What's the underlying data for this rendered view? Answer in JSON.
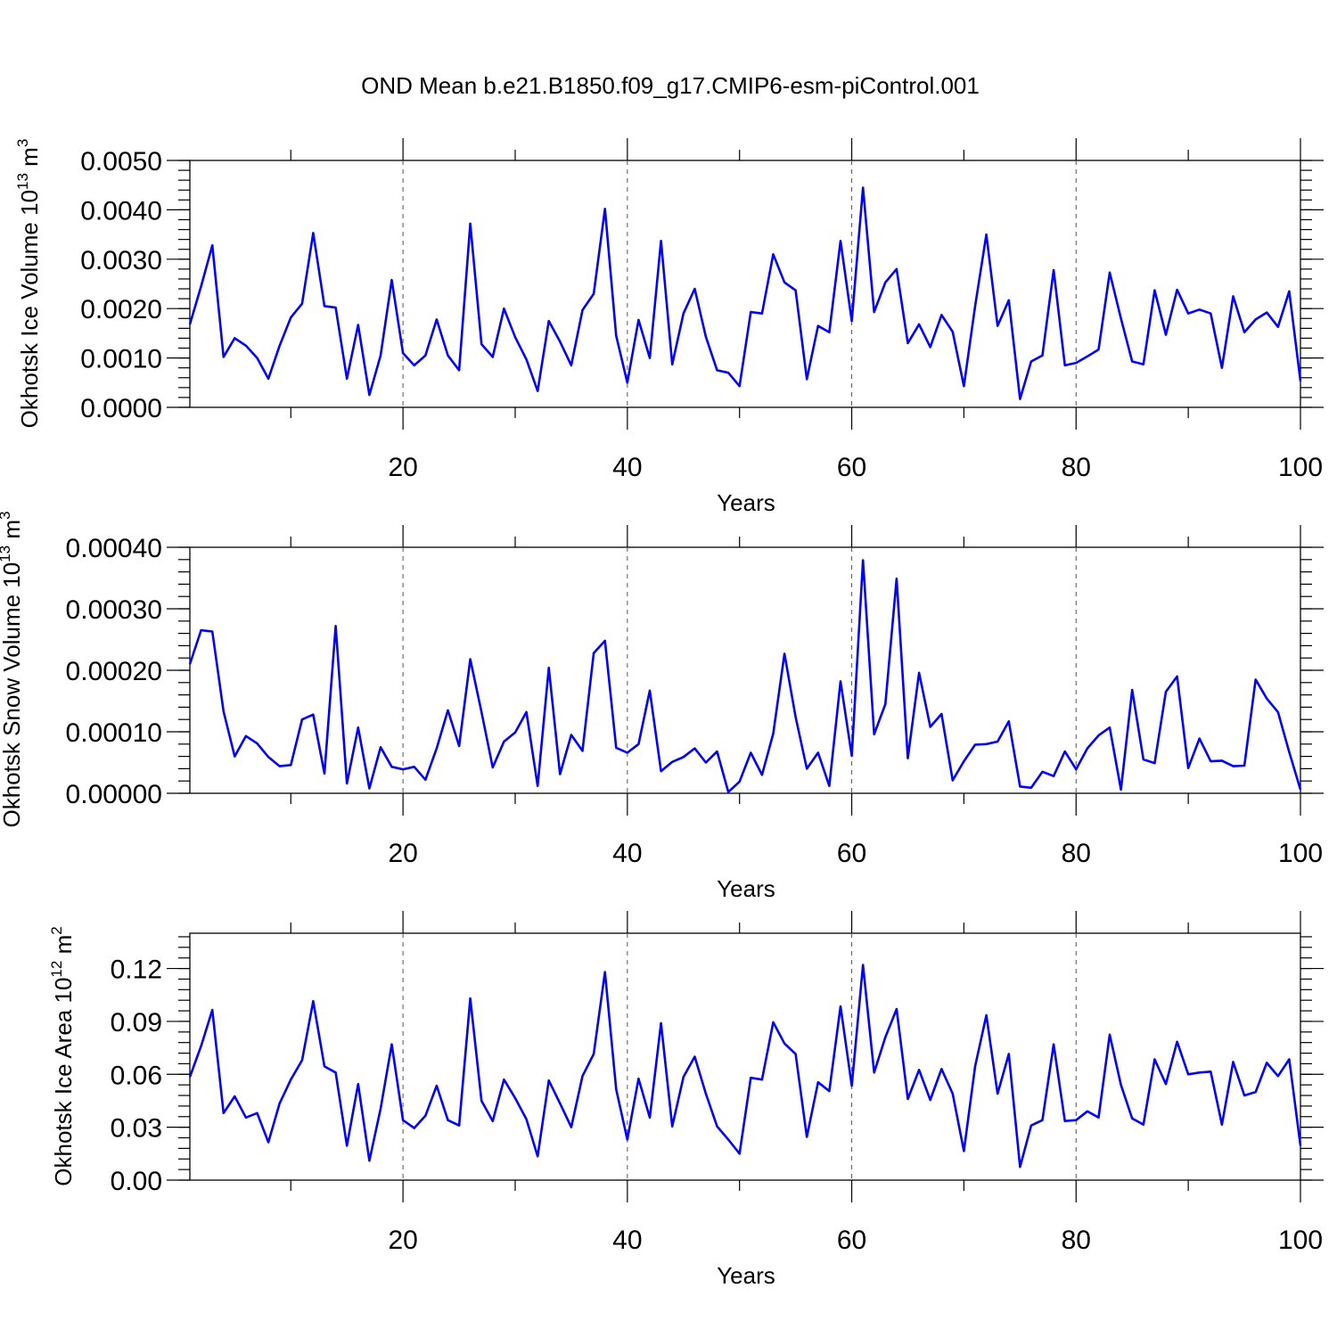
{
  "figure_title": "OND Mean b.e21.B1850.f09_g17.CMIP6-esm-piControl.001",
  "line_color": "#0000ff",
  "chart_data": [
    {
      "type": "line",
      "xlabel": "Years",
      "ylabel": "Okhotsk Ice Volume 10",
      "ylabel_exp": "13",
      "ylabel_unit": "m",
      "ylabel_unit_exp": "3",
      "xlim": [
        1,
        100
      ],
      "ylim": [
        0,
        0.005
      ],
      "yticks": [
        0,
        0.001,
        0.002,
        0.003,
        0.004,
        0.005
      ],
      "ytick_labels": [
        "0.0000",
        "0.0010",
        "0.0020",
        "0.0030",
        "0.0040",
        "0.0050"
      ],
      "xticks": [
        20,
        40,
        60,
        80,
        100
      ],
      "xtick_labels": [
        "20",
        "40",
        "60",
        "80",
        "100"
      ],
      "grid_x": [
        20,
        40,
        60,
        80
      ],
      "values": [
        0.00168,
        0.00245,
        0.00328,
        0.00102,
        0.0014,
        0.00125,
        0.001,
        0.00058,
        0.00125,
        0.00182,
        0.0021,
        0.00353,
        0.00205,
        0.00202,
        0.00058,
        0.00167,
        0.00025,
        0.00105,
        0.00258,
        0.0011,
        0.00085,
        0.00105,
        0.00178,
        0.00105,
        0.00075,
        0.00372,
        0.00128,
        0.00102,
        0.002,
        0.00142,
        0.00097,
        0.00033,
        0.00175,
        0.00133,
        0.00085,
        0.00197,
        0.0023,
        0.00402,
        0.00145,
        0.0005,
        0.00177,
        0.001,
        0.00337,
        0.00087,
        0.0019,
        0.0024,
        0.00143,
        0.00075,
        0.0007,
        0.00043,
        0.00193,
        0.0019,
        0.0031,
        0.00253,
        0.00237,
        0.00057,
        0.00165,
        0.00152,
        0.00337,
        0.00175,
        0.00445,
        0.00193,
        0.00253,
        0.0028,
        0.0013,
        0.00168,
        0.00122,
        0.00187,
        0.00153,
        0.00043,
        0.00205,
        0.0035,
        0.00165,
        0.00217,
        0.00017,
        0.00093,
        0.00105,
        0.00278,
        0.00085,
        0.0009,
        0.00103,
        0.00117,
        0.00273,
        0.0018,
        0.00093,
        0.00087,
        0.00237,
        0.00147,
        0.00238,
        0.0019,
        0.00198,
        0.0019,
        0.0008,
        0.00225,
        0.00152,
        0.00178,
        0.00192,
        0.00163,
        0.00235,
        0.00053
      ]
    },
    {
      "type": "line",
      "xlabel": "Years",
      "ylabel": "Okhotsk Snow Volume 10",
      "ylabel_exp": "13",
      "ylabel_unit": "m",
      "ylabel_unit_exp": "3",
      "xlim": [
        1,
        100
      ],
      "ylim": [
        0,
        0.0004
      ],
      "yticks": [
        0,
        0.0001,
        0.0002,
        0.0003,
        0.0004
      ],
      "ytick_labels": [
        "0.00000",
        "0.00010",
        "0.00020",
        "0.00030",
        "0.00040"
      ],
      "xticks": [
        20,
        40,
        60,
        80,
        100
      ],
      "xtick_labels": [
        "20",
        "40",
        "60",
        "80",
        "100"
      ],
      "grid_x": [
        20,
        40,
        60,
        80
      ],
      "values": [
        0.00021,
        0.000265,
        0.000263,
        0.000133,
        6e-05,
        9.3e-05,
        8.1e-05,
        5.9e-05,
        4.4e-05,
        4.6e-05,
        0.00012,
        0.000128,
        3.2e-05,
        0.000272,
        1.6e-05,
        0.000107,
        8e-06,
        7.5e-05,
        4.3e-05,
        3.9e-05,
        4.3e-05,
        2.2e-05,
        7.3e-05,
        0.000135,
        7.7e-05,
        0.000218,
        0.000132,
        4.2e-05,
        8.4e-05,
        9.9e-05,
        0.000132,
        1.2e-05,
        0.000204,
        3.1e-05,
        9.5e-05,
        6.9e-05,
        0.000228,
        0.000248,
        7.4e-05,
        6.6e-05,
        8e-05,
        0.000167,
        3.6e-05,
        5.1e-05,
        5.9e-05,
        7.3e-05,
        5e-05,
        6.8e-05,
        2e-06,
        1.9e-05,
        6.6e-05,
        3e-05,
        9.7e-05,
        0.000227,
        0.000124,
        4e-05,
        6.6e-05,
        1.2e-05,
        0.000182,
        6.1e-05,
        0.000379,
        9.6e-05,
        0.000145,
        0.000349,
        5.7e-05,
        0.000196,
        0.000108,
        0.000129,
        2.1e-05,
        5.2e-05,
        7.9e-05,
        8e-05,
        8.4e-05,
        0.000117,
        1.1e-05,
        9e-06,
        3.5e-05,
        2.8e-05,
        6.8e-05,
        3.9e-05,
        7.3e-05,
        9.4e-05,
        0.000107,
        6e-06,
        0.000168,
        5.5e-05,
        4.9e-05,
        0.000165,
        0.00019,
        4.1e-05,
        8.9e-05,
        5.2e-05,
        5.3e-05,
        4.4e-05,
        4.5e-05,
        0.000185,
        0.000154,
        0.000132,
        6.7e-05,
        6e-06
      ]
    },
    {
      "type": "line",
      "xlabel": "Years",
      "ylabel": "Okhotsk Ice Area 10",
      "ylabel_exp": "12",
      "ylabel_unit": "m",
      "ylabel_unit_exp": "2",
      "xlim": [
        1,
        100
      ],
      "ylim": [
        0,
        0.14
      ],
      "yticks": [
        0,
        0.03,
        0.06,
        0.09,
        0.12
      ],
      "ytick_labels": [
        "0.00",
        "0.03",
        "0.06",
        "0.09",
        "0.12"
      ],
      "xticks": [
        20,
        40,
        60,
        80,
        100
      ],
      "xtick_labels": [
        "20",
        "40",
        "60",
        "80",
        "100"
      ],
      "grid_x": [
        20,
        40,
        60,
        80
      ],
      "values": [
        0.0585,
        0.076,
        0.0965,
        0.038,
        0.0475,
        0.0355,
        0.038,
        0.0215,
        0.0435,
        0.057,
        0.068,
        0.1015,
        0.0645,
        0.061,
        0.0195,
        0.0545,
        0.011,
        0.0405,
        0.077,
        0.034,
        0.0295,
        0.0365,
        0.0535,
        0.034,
        0.031,
        0.103,
        0.045,
        0.0335,
        0.057,
        0.0465,
        0.0345,
        0.0135,
        0.0565,
        0.0435,
        0.03,
        0.059,
        0.0715,
        0.118,
        0.0515,
        0.023,
        0.0575,
        0.0355,
        0.089,
        0.0305,
        0.0585,
        0.07,
        0.049,
        0.0305,
        0.023,
        0.015,
        0.058,
        0.057,
        0.0895,
        0.0775,
        0.0715,
        0.0245,
        0.0555,
        0.0505,
        0.0985,
        0.0535,
        0.122,
        0.061,
        0.081,
        0.097,
        0.046,
        0.0625,
        0.0455,
        0.063,
        0.049,
        0.0165,
        0.0645,
        0.0935,
        0.049,
        0.0715,
        0.0075,
        0.031,
        0.034,
        0.077,
        0.0335,
        0.034,
        0.039,
        0.0355,
        0.0825,
        0.054,
        0.035,
        0.0315,
        0.0685,
        0.0545,
        0.0785,
        0.06,
        0.061,
        0.0615,
        0.0315,
        0.067,
        0.048,
        0.05,
        0.0665,
        0.059,
        0.0685,
        0.0195
      ]
    }
  ]
}
